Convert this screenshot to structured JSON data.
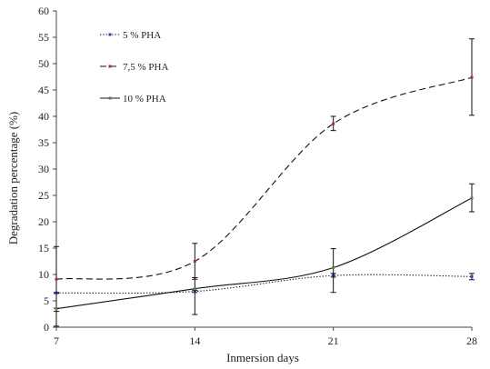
{
  "chart_data": {
    "type": "line",
    "xlabel": "Inmersion days",
    "ylabel": "Degradation percentage (%)",
    "xlim": [
      7,
      28
    ],
    "ylim": [
      0,
      60
    ],
    "x_ticks": [
      "7",
      "14",
      "21",
      "28"
    ],
    "y_ticks": [
      "0",
      "5",
      "10",
      "15",
      "20",
      "25",
      "30",
      "35",
      "40",
      "45",
      "50",
      "55",
      "60"
    ],
    "grid": false,
    "legend_position": "top-left",
    "smooth": true,
    "series": [
      {
        "name": "5 % PHA",
        "x": [
          7,
          14,
          21,
          28
        ],
        "values": [
          6.5,
          6.8,
          9.8,
          9.6
        ],
        "error": [
          [
            6.4,
            6.6
          ],
          [
            6.6,
            7.0
          ],
          [
            9.5,
            10.2
          ],
          [
            9.0,
            10.2
          ]
        ],
        "line_style": "dotted",
        "marker_color": "#3a3ad0"
      },
      {
        "name": "7,5 % PHA",
        "x": [
          7,
          14,
          21,
          28
        ],
        "values": [
          9.1,
          12.5,
          38.6,
          47.4
        ],
        "error": [
          [
            3.0,
            15.3
          ],
          [
            9.1,
            15.9
          ],
          [
            37.3,
            40.0
          ],
          [
            40.2,
            54.7
          ]
        ],
        "line_style": "dashed",
        "marker_color": "#a8323a"
      },
      {
        "name": "10 % PHA",
        "x": [
          7,
          14,
          21,
          28
        ],
        "values": [
          3.5,
          7.3,
          11.3,
          24.5
        ],
        "error": [
          [
            0.2,
            3.6
          ],
          [
            2.4,
            9.4
          ],
          [
            6.6,
            14.9
          ],
          [
            21.9,
            27.2
          ]
        ],
        "line_style": "solid",
        "marker_color": "#4a8a3a"
      }
    ]
  }
}
